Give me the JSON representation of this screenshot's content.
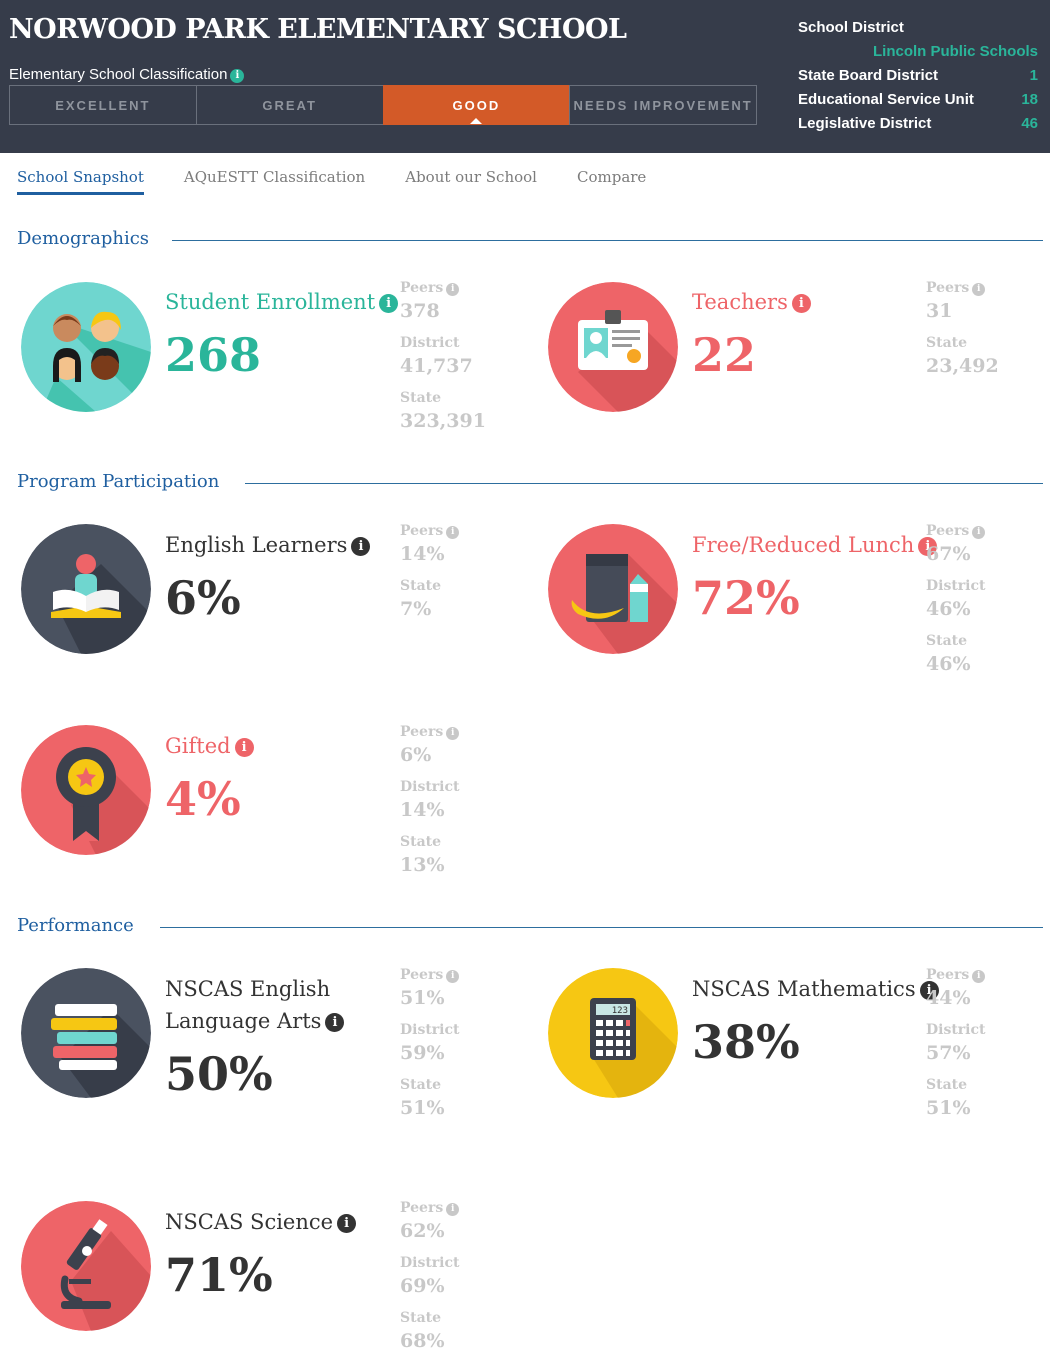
{
  "header": {
    "school_name": "NORWOOD PARK ELEMENTARY SCHOOL",
    "classification_label": "Elementary School Classification",
    "ratings": [
      "EXCELLENT",
      "GREAT",
      "GOOD",
      "NEEDS IMPROVEMENT"
    ],
    "active_rating": "GOOD",
    "district": {
      "school_district_label": "School District",
      "school_district_value": "Lincoln Public Schools",
      "state_board_label": "State Board District",
      "state_board_value": "1",
      "esu_label": "Educational Service Unit",
      "esu_value": "18",
      "legislative_label": "Legislative District",
      "legislative_value": "46"
    }
  },
  "tabs": [
    "School Snapshot",
    "AQuESTT Classification",
    "About our School",
    "Compare"
  ],
  "active_tab": "School Snapshot",
  "sections": {
    "demographics": "Demographics",
    "program": "Program Participation",
    "performance": "Performance"
  },
  "info_glyph": "i",
  "metrics": {
    "enrollment": {
      "title": "Student Enrollment",
      "value": "268",
      "icon": "students-icon",
      "compare": [
        {
          "label": "Peers",
          "value": "378"
        },
        {
          "label": "District",
          "value": "41,737"
        },
        {
          "label": "State",
          "value": "323,391"
        }
      ]
    },
    "teachers": {
      "title": "Teachers",
      "value": "22",
      "icon": "id-badge-icon",
      "compare": [
        {
          "label": "Peers",
          "value": "31"
        },
        {
          "label": "State",
          "value": "23,492"
        }
      ]
    },
    "english_learners": {
      "title": "English Learners",
      "value": "6%",
      "icon": "reader-book-icon",
      "compare": [
        {
          "label": "Peers",
          "value": "14%"
        },
        {
          "label": "State",
          "value": "7%"
        }
      ]
    },
    "lunch": {
      "title": "Free/Reduced Lunch",
      "value": "72%",
      "icon": "lunch-bag-icon",
      "compare": [
        {
          "label": "Peers",
          "value": "67%"
        },
        {
          "label": "District",
          "value": "46%"
        },
        {
          "label": "State",
          "value": "46%"
        }
      ]
    },
    "gifted": {
      "title": "Gifted",
      "value": "4%",
      "icon": "award-ribbon-icon",
      "compare": [
        {
          "label": "Peers",
          "value": "6%"
        },
        {
          "label": "District",
          "value": "14%"
        },
        {
          "label": "State",
          "value": "13%"
        }
      ]
    },
    "ela": {
      "title_line1": "NSCAS English",
      "title_line2": "Language Arts",
      "value": "50%",
      "icon": "book-stack-icon",
      "compare": [
        {
          "label": "Peers",
          "value": "51%"
        },
        {
          "label": "District",
          "value": "59%"
        },
        {
          "label": "State",
          "value": "51%"
        }
      ]
    },
    "math": {
      "title": "NSCAS Mathematics",
      "value": "38%",
      "icon": "calculator-icon",
      "calc_display": "123",
      "compare": [
        {
          "label": "Peers",
          "value": "44%"
        },
        {
          "label": "District",
          "value": "57%"
        },
        {
          "label": "State",
          "value": "51%"
        }
      ]
    },
    "science": {
      "title": "NSCAS Science",
      "value": "71%",
      "icon": "microscope-icon",
      "compare": [
        {
          "label": "Peers",
          "value": "62%"
        },
        {
          "label": "District",
          "value": "69%"
        },
        {
          "label": "State",
          "value": "68%"
        }
      ]
    }
  },
  "colors": {
    "header_bg": "#363c4a",
    "teal": "#2ab59a",
    "red": "#ee6468",
    "orange_active": "#d35a28",
    "blue": "#1f5fa0",
    "gray_compare": "#c8c8c8",
    "dark": "#333333",
    "yellow": "#f6c713"
  }
}
